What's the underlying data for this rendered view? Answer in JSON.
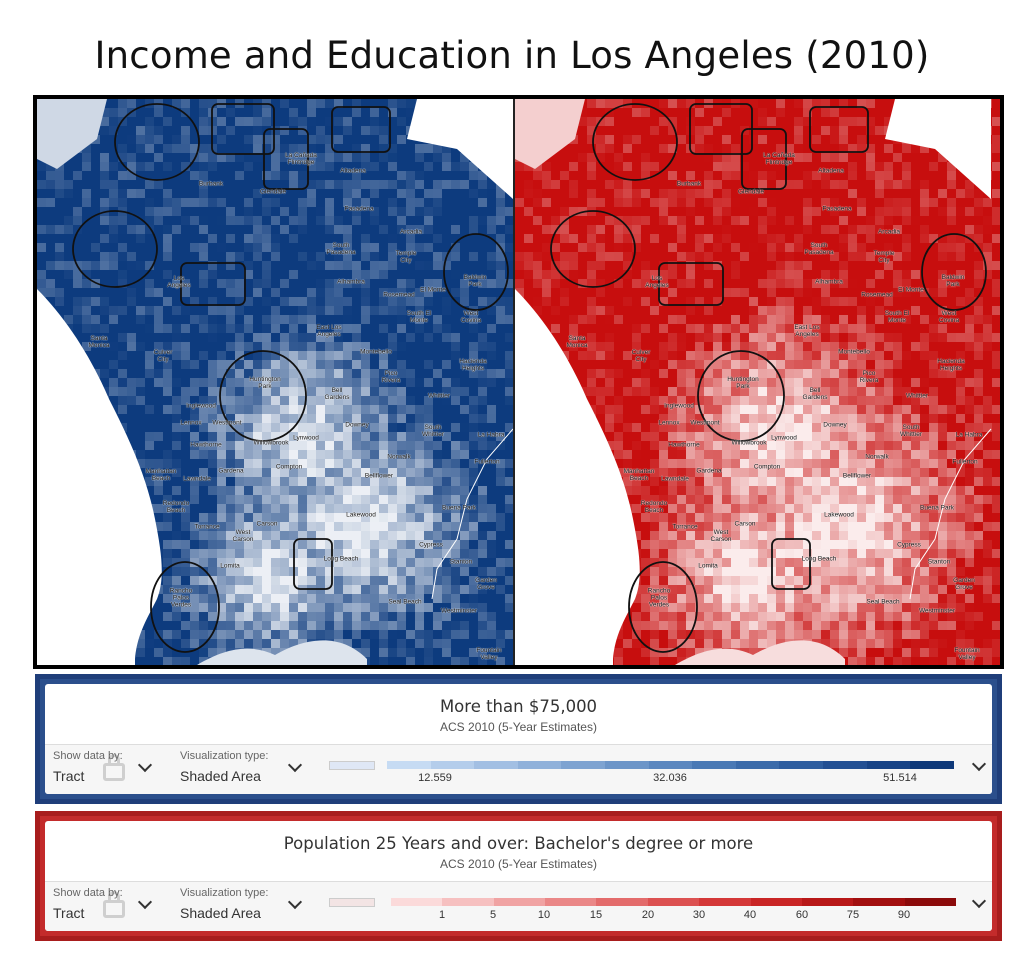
{
  "page": {
    "title": "Income and Education in Los Angeles (2010)"
  },
  "maps": {
    "left": {
      "name": "income",
      "base_color": "#0d3b7e",
      "light_color": "#dfe7f5"
    },
    "right": {
      "name": "education",
      "base_color": "#c70e0e",
      "light_color": "#f8d4d4"
    },
    "places": [
      {
        "id": "la-canada",
        "text": "La Cañada\nFlintridge"
      },
      {
        "id": "altadena",
        "text": "Altadena"
      },
      {
        "id": "burbank",
        "text": "Burbank"
      },
      {
        "id": "glendale",
        "text": "Glendale"
      },
      {
        "id": "pasadena",
        "text": "Pasadena"
      },
      {
        "id": "arcadia",
        "text": "Arcadia"
      },
      {
        "id": "south-pasadena",
        "text": "South\nPasadena"
      },
      {
        "id": "temple-city",
        "text": "Temple\nCity"
      },
      {
        "id": "los-angeles",
        "text": "Los\nAngeles"
      },
      {
        "id": "alhambra",
        "text": "Alhambra"
      },
      {
        "id": "rosemead",
        "text": "Rosemead"
      },
      {
        "id": "el-monte",
        "text": "El Monte"
      },
      {
        "id": "baldwin-park",
        "text": "Baldwin\nPark"
      },
      {
        "id": "south-el-monte",
        "text": "South El\nMonte"
      },
      {
        "id": "west-covina",
        "text": "West\nCovina"
      },
      {
        "id": "santa-monica",
        "text": "Santa\nMonica"
      },
      {
        "id": "culver-city",
        "text": "Culver\nCity"
      },
      {
        "id": "east-la",
        "text": "East Los\nAngeles"
      },
      {
        "id": "montebello",
        "text": "Montebello"
      },
      {
        "id": "hacienda-heights",
        "text": "Hacienda\nHeights"
      },
      {
        "id": "huntington-park",
        "text": "Huntington\nPark"
      },
      {
        "id": "bell-gardens",
        "text": "Bell\nGardens"
      },
      {
        "id": "pico-rivera",
        "text": "Pico\nRivera"
      },
      {
        "id": "whittier",
        "text": "Whittier"
      },
      {
        "id": "inglewood",
        "text": "Inglewood"
      },
      {
        "id": "lennox",
        "text": "Lennox"
      },
      {
        "id": "westmont",
        "text": "Westmont"
      },
      {
        "id": "downey",
        "text": "Downey"
      },
      {
        "id": "south-whittier",
        "text": "South\nWhittier"
      },
      {
        "id": "la-habra",
        "text": "La Habra"
      },
      {
        "id": "hawthorne",
        "text": "Hawthorne"
      },
      {
        "id": "willowbrook",
        "text": "Willowbrook"
      },
      {
        "id": "lynwood",
        "text": "Lynwood"
      },
      {
        "id": "norwalk",
        "text": "Norwalk"
      },
      {
        "id": "fullerton",
        "text": "Fullerton"
      },
      {
        "id": "manhattan-beach",
        "text": "Manhattan\nBeach"
      },
      {
        "id": "lawndale",
        "text": "Lawndale"
      },
      {
        "id": "gardena",
        "text": "Gardena"
      },
      {
        "id": "compton",
        "text": "Compton"
      },
      {
        "id": "bellflower",
        "text": "Bellflower"
      },
      {
        "id": "buena-park",
        "text": "Buena Park"
      },
      {
        "id": "redondo-beach",
        "text": "Redondo\nBeach"
      },
      {
        "id": "torrance",
        "text": "Torrance"
      },
      {
        "id": "carson",
        "text": "Carson"
      },
      {
        "id": "lakewood",
        "text": "Lakewood"
      },
      {
        "id": "cypress",
        "text": "Cypress"
      },
      {
        "id": "stanton",
        "text": "Stanton"
      },
      {
        "id": "west-carson",
        "text": "West\nCarson"
      },
      {
        "id": "lomita",
        "text": "Lomita"
      },
      {
        "id": "long-beach",
        "text": "Long Beach"
      },
      {
        "id": "garden-grove",
        "text": "Garden\nGrove"
      },
      {
        "id": "rancho-palos-verdes",
        "text": "Rancho\nPalos\nVerdes"
      },
      {
        "id": "seal-beach",
        "text": "Seal Beach"
      },
      {
        "id": "westminster",
        "text": "Westminster"
      },
      {
        "id": "fountain-valley",
        "text": "Fountain\nValley"
      }
    ]
  },
  "legend_income": {
    "title": "More than $75,000",
    "subtitle": "ACS 2010 (5-Year Estimates)",
    "show_data_by_label": "Show data by:",
    "show_data_by_value": "Tract",
    "viz_type_label": "Visualization type:",
    "viz_type_value": "Shaded Area",
    "ticks": [
      "12.559",
      "32.036",
      "51.514"
    ],
    "colors": [
      "#c6dbf3",
      "#b4cdeb",
      "#a2bfe3",
      "#90b1da",
      "#7ea3d1",
      "#6c95c8",
      "#5b87bf",
      "#4a79b5",
      "#3b6baa",
      "#2e5d9f",
      "#224f93",
      "#174386",
      "#0e3879"
    ]
  },
  "legend_education": {
    "title": "Population 25 Years and over: Bachelor's degree or more",
    "subtitle": "ACS 2010 (5-Year Estimates)",
    "show_data_by_label": "Show data by:",
    "show_data_by_value": "Tract",
    "viz_type_label": "Visualization type:",
    "viz_type_value": "Shaded Area",
    "ticks": [
      "1",
      "5",
      "10",
      "15",
      "20",
      "30",
      "40",
      "60",
      "75",
      "90"
    ],
    "colors": [
      "#fbdada",
      "#f6c0c0",
      "#f0a3a3",
      "#ea8787",
      "#e36b6b",
      "#dc5151",
      "#d43838",
      "#c92525",
      "#b81818",
      "#a20f0f",
      "#8b0a0a"
    ]
  }
}
